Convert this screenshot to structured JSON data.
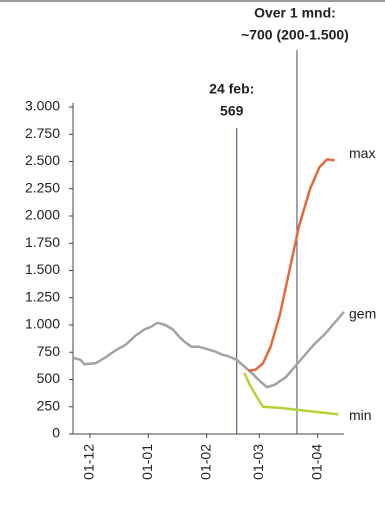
{
  "chart_data": {
    "type": "line",
    "xlim": [
      -9,
      135
    ],
    "xticks": [
      {
        "value": 0,
        "label": "01-12"
      },
      {
        "value": 31,
        "label": "01-01"
      },
      {
        "value": 62,
        "label": "01-02"
      },
      {
        "value": 90,
        "label": "01-03"
      },
      {
        "value": 121,
        "label": "01-04"
      }
    ],
    "ylim": [
      0,
      3000
    ],
    "yticks": [
      0,
      250,
      500,
      750,
      {
        "value": 1000,
        "label": "1.000"
      },
      {
        "value": 1250,
        "label": "1.250"
      },
      {
        "value": 1500,
        "label": "1.500"
      },
      {
        "value": 1750,
        "label": "1.750"
      },
      {
        "value": 2000,
        "label": "2.000"
      },
      {
        "value": 2250,
        "label": "2.250"
      },
      {
        "value": 2500,
        "label": "2.500"
      },
      {
        "value": 2750,
        "label": "2.750"
      },
      {
        "value": 3000,
        "label": "3.000"
      }
    ],
    "series": [
      {
        "name": "gem",
        "color": "#a3a3a3",
        "x": [
          -9,
          -5,
          -3,
          3,
          8,
          13,
          19,
          24,
          29,
          32,
          36,
          40,
          44,
          47,
          50,
          54,
          58,
          62,
          66,
          70,
          74,
          78,
          82,
          86,
          90,
          94,
          98,
          104,
          109,
          114,
          119,
          125,
          130,
          135
        ],
        "values": [
          700,
          680,
          640,
          650,
          700,
          760,
          820,
          900,
          960,
          980,
          1020,
          1000,
          960,
          900,
          850,
          800,
          800,
          780,
          760,
          730,
          710,
          680,
          620,
          560,
          490,
          430,
          450,
          520,
          620,
          720,
          820,
          920,
          1020,
          1120
        ]
      },
      {
        "name": "max",
        "color": "#e3693f",
        "x": [
          84,
          88,
          92,
          96,
          101,
          106,
          111,
          117,
          122,
          126,
          130
        ],
        "values": [
          580,
          590,
          650,
          800,
          1100,
          1500,
          1900,
          2250,
          2450,
          2520,
          2510
        ]
      },
      {
        "name": "min",
        "color": "#b4d334",
        "x": [
          82,
          85,
          89,
          92,
          101,
          111,
          122,
          132
        ],
        "values": [
          560,
          450,
          330,
          250,
          240,
          220,
          200,
          180
        ]
      }
    ],
    "annotations": [
      {
        "x": 78,
        "text": [
          "24 feb:",
          "569"
        ]
      },
      {
        "x": 110,
        "text": [
          "Over 1 mnd:",
          "~700 (200-1.500)"
        ]
      }
    ]
  }
}
